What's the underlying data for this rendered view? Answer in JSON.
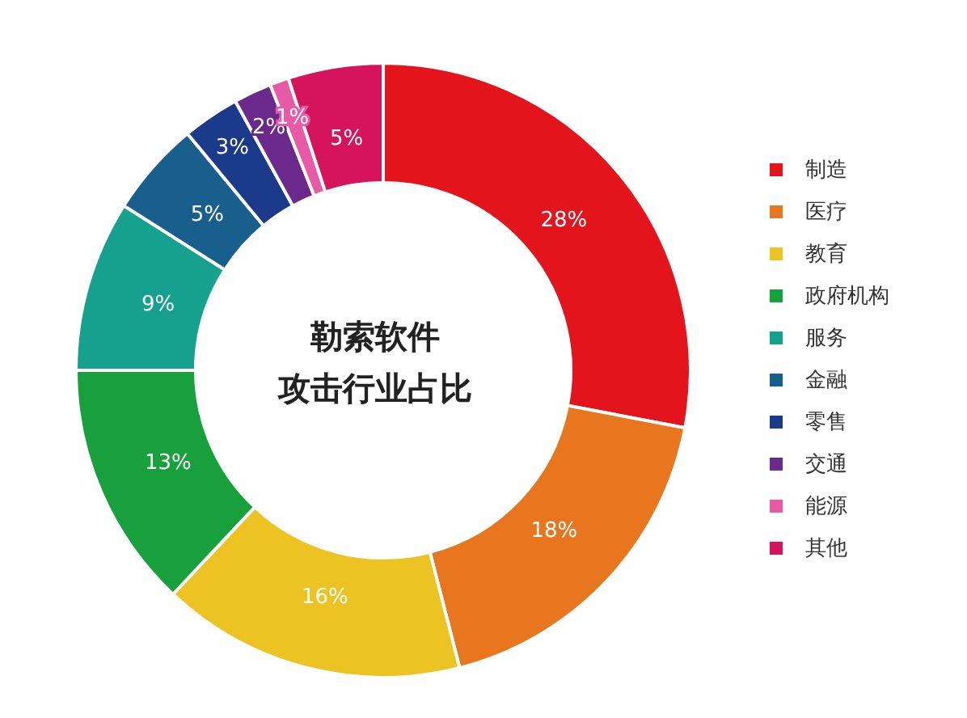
{
  "chart_data": {
    "type": "donut",
    "title": "勒索软件攻击行业占比",
    "categories": [
      "制造",
      "医疗",
      "教育",
      "政府机构",
      "服务",
      "金融",
      "零售",
      "交通",
      "能源",
      "其他"
    ],
    "values": [
      28,
      18,
      16,
      13,
      9,
      5,
      3,
      2,
      1,
      5
    ],
    "value_labels": [
      "28%",
      "18%",
      "16%",
      "13%",
      "9%",
      "5%",
      "3%",
      "2%",
      "1%",
      "5%"
    ],
    "colors": [
      "#e3141c",
      "#e8761e",
      "#edc323",
      "#17a03b",
      "#16a08e",
      "#195f8e",
      "#1b3a89",
      "#6b2a8b",
      "#e85aa6",
      "#d6145c"
    ],
    "legend": "right"
  }
}
